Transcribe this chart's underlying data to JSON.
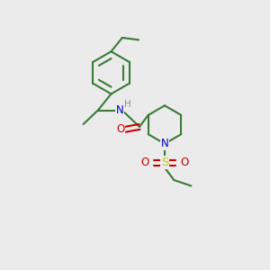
{
  "bg_color": "#ebebeb",
  "bond_color": "#3a7a3a",
  "N_color": "#0000cc",
  "O_color": "#cc0000",
  "S_color": "#cccc00",
  "H_color": "#888899",
  "line_width": 1.5,
  "figsize": [
    3.0,
    3.0
  ],
  "dpi": 100,
  "xlim": [
    0,
    10
  ],
  "ylim": [
    0,
    10
  ]
}
